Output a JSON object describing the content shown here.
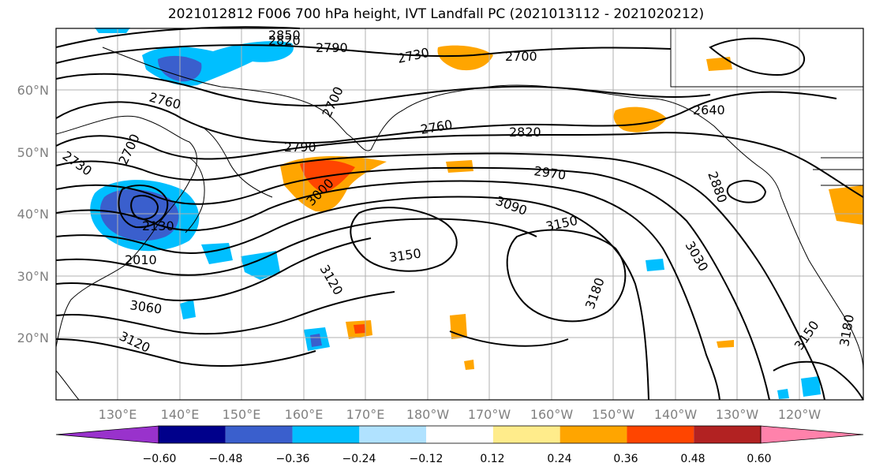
{
  "title": "2021012812 F006 700 hPa height, IVT Landfall PC (2021013112 - 2021020212)",
  "map": {
    "lat_labels": [
      "60°N",
      "50°N",
      "40°N",
      "30°N",
      "20°N"
    ],
    "lon_labels": [
      "130°E",
      "140°E",
      "150°E",
      "160°E",
      "170°E",
      "180°W",
      "170°W",
      "160°W",
      "150°W",
      "140°W",
      "130°W",
      "120°W"
    ],
    "contour_labels": [
      "2850",
      "2820",
      "2790",
      "2730",
      "2700",
      "2760",
      "2700",
      "2760",
      "2820",
      "2790",
      "2700",
      "2730",
      "2970",
      "3000",
      "3090",
      "3150",
      "2880",
      "3150",
      "3120",
      "3180",
      "3030",
      "3060",
      "3120",
      "3150",
      "3180",
      "2130",
      "2010",
      "2640"
    ]
  },
  "colorbar": {
    "tick_labels": [
      "−0.60",
      "−0.48",
      "−0.36",
      "−0.24",
      "−0.12",
      "0.12",
      "0.24",
      "0.36",
      "0.48",
      "0.60"
    ],
    "colors": [
      "#9932cc",
      "#00008b",
      "#3a5fcd",
      "#00bfff",
      "#b0e2ff",
      "#ffffff",
      "#ffec8b",
      "#ffa500",
      "#ff4500",
      "#b22222",
      "#ff82ab"
    ]
  }
}
